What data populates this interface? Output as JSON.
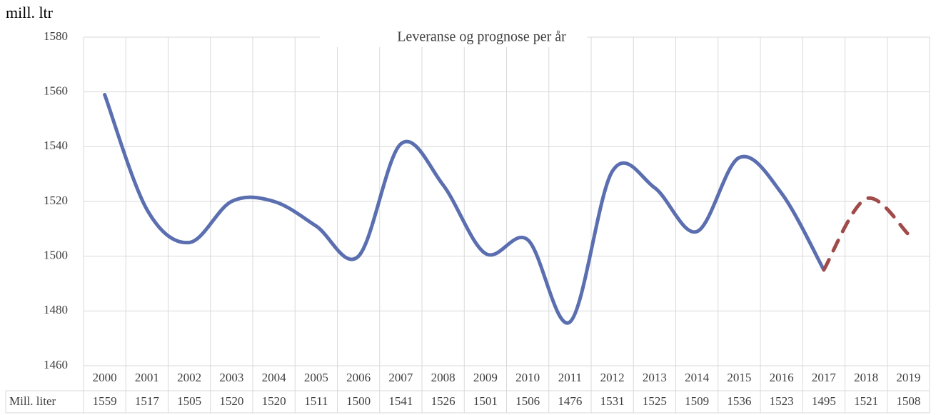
{
  "chart_data": {
    "type": "line",
    "title": "Leveranse og prognose per år",
    "y_label": "mill. ltr",
    "categories": [
      "2000",
      "2001",
      "2002",
      "2003",
      "2004",
      "2005",
      "2006",
      "2007",
      "2008",
      "2009",
      "2010",
      "2011",
      "2012",
      "2013",
      "2014",
      "2015",
      "2016",
      "2017",
      "2018",
      "2019"
    ],
    "series": [
      {
        "name": "Mill. liter",
        "color": "#5b6fb0",
        "dashed": false,
        "values": [
          1559,
          1517,
          1505,
          1520,
          1520,
          1511,
          1500,
          1541,
          1526,
          1501,
          1506,
          1476,
          1531,
          1525,
          1509,
          1536,
          1523,
          1495,
          null,
          null
        ]
      },
      {
        "color": "#a04a4a",
        "dashed": true,
        "values": [
          null,
          null,
          null,
          null,
          null,
          null,
          null,
          null,
          null,
          null,
          null,
          null,
          null,
          null,
          null,
          null,
          null,
          1495,
          1521,
          1508
        ]
      }
    ],
    "ylim": [
      1460,
      1580
    ],
    "yticks": [
      1460,
      1480,
      1500,
      1520,
      1540,
      1560,
      1580
    ],
    "grid": true,
    "smooth": true
  }
}
